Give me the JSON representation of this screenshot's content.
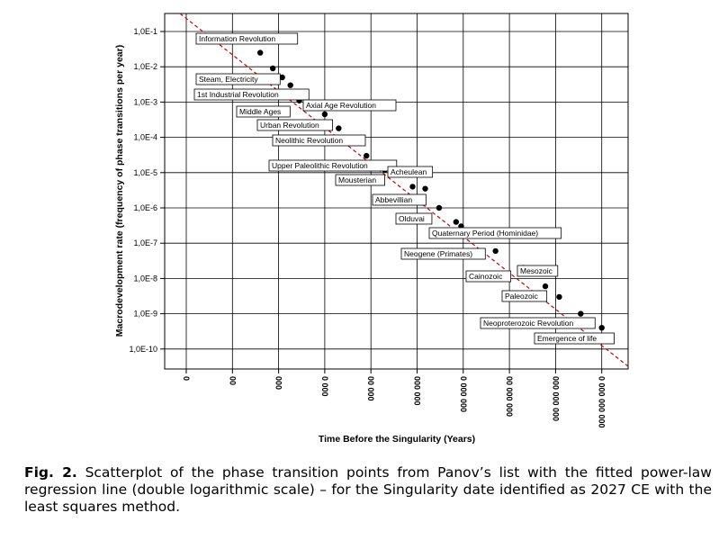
{
  "chart_data": {
    "type": "scatter",
    "title": "",
    "xlabel": "Time Before the Singularity (Years)",
    "ylabel": "Macrodevelopment rate (frequency of phase transitions per year)",
    "x_scale": "log",
    "y_scale": "log",
    "x_ticks": [
      "0",
      "00",
      "000",
      "0 000",
      "00 000",
      "000 000",
      "0 000 000",
      "00 000 000",
      "000 000 000",
      "0 000 000 000"
    ],
    "y_ticks": [
      "1,0E-1",
      "1,0E-2",
      "1,0E-3",
      "1,0E-4",
      "1,0E-5",
      "1,0E-6",
      "1,0E-7",
      "1,0E-8",
      "1,0E-9",
      "1,0E-10"
    ],
    "x_range": [
      1,
      10000000000
    ],
    "y_range": [
      1e-10,
      0.1
    ],
    "grid": true,
    "trend_line": {
      "label": "fitted power-law regression line",
      "color": "#cc0000",
      "style": "dashed"
    },
    "points": [
      {
        "label": "Information Revolution",
        "x": 40,
        "y": 0.025
      },
      {
        "label": "",
        "x": 75,
        "y": 0.009
      },
      {
        "label": "Steam, Electricity",
        "x": 120,
        "y": 0.005
      },
      {
        "label": "",
        "x": 180,
        "y": 0.003
      },
      {
        "label": "1st Industrial Revolution",
        "x": 280,
        "y": 0.0011
      },
      {
        "label": "Axial Age Revolution",
        "x": 550,
        "y": 0.0009
      },
      {
        "label": "Middle Ages",
        "x": 1000,
        "y": 0.00045
      },
      {
        "label": "Urban Revolution",
        "x": 2000,
        "y": 0.00018
      },
      {
        "label": "Neolithic Revolution",
        "x": 8000,
        "y": 3e-05
      },
      {
        "label": "Upper Paleolithic Revolution",
        "x": 20000,
        "y": 1.2e-05
      },
      {
        "label": "Mousterian",
        "x": 80000,
        "y": 4e-06
      },
      {
        "label": "Acheulean",
        "x": 150000,
        "y": 3.5e-06
      },
      {
        "label": "Abbevillian",
        "x": 300000,
        "y": 1e-06
      },
      {
        "label": "Olduvai",
        "x": 700000,
        "y": 4e-07
      },
      {
        "label": "Quaternary Period (Hominidae)",
        "x": 900000,
        "y": 3e-07
      },
      {
        "label": "Neogene (Primates)",
        "x": 5000000,
        "y": 6e-08
      },
      {
        "label": "Cainozoic",
        "x": 20000000,
        "y": 2e-08
      },
      {
        "label": "Mesozoic",
        "x": 60000000,
        "y": 6e-09
      },
      {
        "label": "Paleozoic",
        "x": 120000000,
        "y": 3e-09
      },
      {
        "label": "Neoproterozoic Revolution",
        "x": 350000000,
        "y": 1e-09
      },
      {
        "label": "Emergence of life",
        "x": 1000000000,
        "y": 4e-10
      }
    ]
  },
  "caption": {
    "label": "Fig. 2.",
    "text": "Scatterplot of the phase transition points from Panov’s list with the fitted power-law regression line (double logarithmic scale) – for the Singularity date identified as 2027 CE with the least squares method."
  }
}
